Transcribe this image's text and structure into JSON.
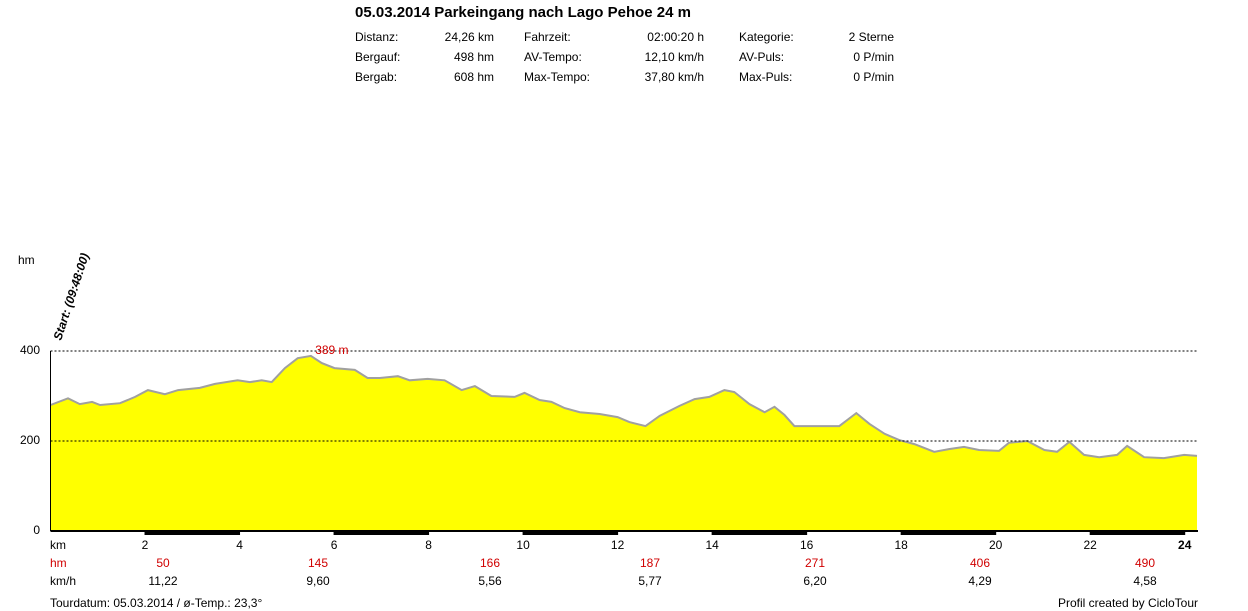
{
  "header": {
    "title": "05.03.2014 Parkeingang nach Lago Pehoe 24 m",
    "info": [
      [
        "Distanz:",
        "24,26 km",
        "Fahrzeit:",
        "02:00:20 h",
        "Kategorie:",
        "2 Sterne"
      ],
      [
        "Bergauf:",
        "498 hm",
        "AV-Tempo:",
        "12,10 km/h",
        "AV-Puls:",
        "0 P/min"
      ],
      [
        "Bergab:",
        "608 hm",
        "Max-Tempo:",
        "37,80 km/h",
        "Max-Puls:",
        "0 P/min"
      ]
    ]
  },
  "chart_data": {
    "type": "area",
    "y_label": "hm",
    "x_label": "km",
    "start_label": "Start: (09:48:00)",
    "x": [
      0,
      0.37,
      0.62,
      0.88,
      1.05,
      1.47,
      1.79,
      2.06,
      2.42,
      2.7,
      3.16,
      3.48,
      3.96,
      4.22,
      4.47,
      4.68,
      4.96,
      5.23,
      5.51,
      5.74,
      6.01,
      6.44,
      6.71,
      6.97,
      7.35,
      7.6,
      7.98,
      8.34,
      8.7,
      8.98,
      9.33,
      9.82,
      10.03,
      10.35,
      10.6,
      10.88,
      11.2,
      11.62,
      12.0,
      12.25,
      12.59,
      12.89,
      13.31,
      13.63,
      13.94,
      14.26,
      14.47,
      14.79,
      15.11,
      15.32,
      15.53,
      15.74,
      16.27,
      16.69,
      17.05,
      17.33,
      17.65,
      17.96,
      18.28,
      18.7,
      19.01,
      19.33,
      19.65,
      20.07,
      20.28,
      20.67,
      21.03,
      21.3,
      21.56,
      21.87,
      22.19,
      22.57,
      22.78,
      23.14,
      23.56,
      23.99,
      24.26
    ],
    "values": [
      280,
      295,
      282,
      287,
      280,
      284,
      298,
      313,
      304,
      313,
      318,
      327,
      335,
      331,
      335,
      331,
      362,
      384,
      389,
      373,
      362,
      358,
      340,
      340,
      344,
      335,
      338,
      335,
      313,
      322,
      300,
      298,
      307,
      291,
      287,
      273,
      264,
      260,
      253,
      242,
      233,
      256,
      278,
      293,
      298,
      313,
      309,
      282,
      264,
      276,
      258,
      233,
      233,
      233,
      262,
      238,
      216,
      202,
      193,
      176,
      182,
      187,
      180,
      178,
      196,
      200,
      180,
      176,
      198,
      169,
      164,
      169,
      189,
      164,
      162,
      169,
      167
    ],
    "color": "#ffff00",
    "line_color": "#a0a0a0",
    "xlim": [
      0,
      24.26
    ],
    "ylim": [
      0,
      400
    ],
    "yticks": [
      0,
      200,
      400
    ],
    "xticks": [
      2,
      4,
      6,
      8,
      10,
      12,
      14,
      16,
      18,
      20,
      22,
      24
    ],
    "grid": true,
    "annotations": [
      {
        "text": "389 m",
        "x": 5.51,
        "y": 389
      }
    ]
  },
  "table": {
    "rows": [
      {
        "label": "hm",
        "values": [
          "50",
          "145",
          "166",
          "187",
          "271",
          "406",
          "490"
        ]
      },
      {
        "label": "km/h",
        "values": [
          "11,22",
          "9,60",
          "5,56",
          "5,77",
          "6,20",
          "4,29",
          "4,58"
        ]
      }
    ]
  },
  "footer": {
    "left": "Tourdatum: 05.03.2014  /  ø-Temp.: 23,3°",
    "right": "Profil created by CicloTour"
  }
}
